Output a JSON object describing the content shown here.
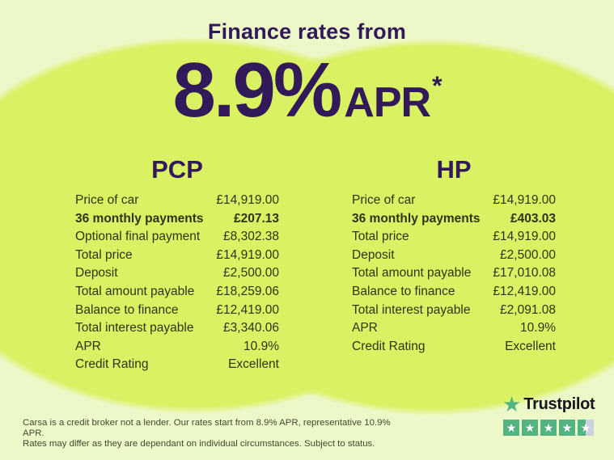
{
  "header": {
    "title": "Finance rates from",
    "rate": "8.9%",
    "apr_label": "APR",
    "asterisk": "*"
  },
  "pcp": {
    "title": "PCP",
    "rows": [
      {
        "label": "Price of car",
        "value": "£14,919.00"
      },
      {
        "label": "36 monthly payments",
        "value": "£207.13",
        "bold": true
      },
      {
        "label": "Optional final payment",
        "value": "£8,302.38"
      },
      {
        "label": "Total price",
        "value": "£14,919.00"
      },
      {
        "label": "Deposit",
        "value": "£2,500.00"
      },
      {
        "label": "Total amount payable",
        "value": "£18,259.06"
      },
      {
        "label": "Balance to finance",
        "value": "£12,419.00"
      },
      {
        "label": "Total interest payable",
        "value": "£3,340.06"
      },
      {
        "label": "APR",
        "value": "10.9%"
      },
      {
        "label": "Credit Rating",
        "value": "Excellent"
      }
    ]
  },
  "hp": {
    "title": "HP",
    "rows": [
      {
        "label": "Price of car",
        "value": "£14,919.00"
      },
      {
        "label": "36 monthly payments",
        "value": "£403.03",
        "bold": true
      },
      {
        "label": "Total price",
        "value": "£14,919.00"
      },
      {
        "label": "Deposit",
        "value": "£2,500.00"
      },
      {
        "label": "Total amount payable",
        "value": "£17,010.08"
      },
      {
        "label": "Balance to finance",
        "value": "£12,419.00"
      },
      {
        "label": "Total interest payable",
        "value": "£2,091.08"
      },
      {
        "label": "APR",
        "value": "10.9%"
      },
      {
        "label": "Credit Rating",
        "value": "Excellent"
      }
    ]
  },
  "disclaimer": {
    "line1": "Carsa is a credit broker not a lender. Our rates start from 8.9% APR, representative 10.9% APR.",
    "line2": "Rates may differ as they are dependant on individual circumstances. Subject to status."
  },
  "trustpilot": {
    "brand": "Trustpilot",
    "stars_filled": 4.5,
    "stars_total": 5,
    "star_glyph": "★"
  },
  "colors": {
    "background": "#edf8c9",
    "circle": "#d9f163",
    "heading_purple": "#31195a",
    "table_text": "#2d3517",
    "trustpilot_green": "#54b481",
    "trustpilot_empty": "#ccd1e0"
  }
}
